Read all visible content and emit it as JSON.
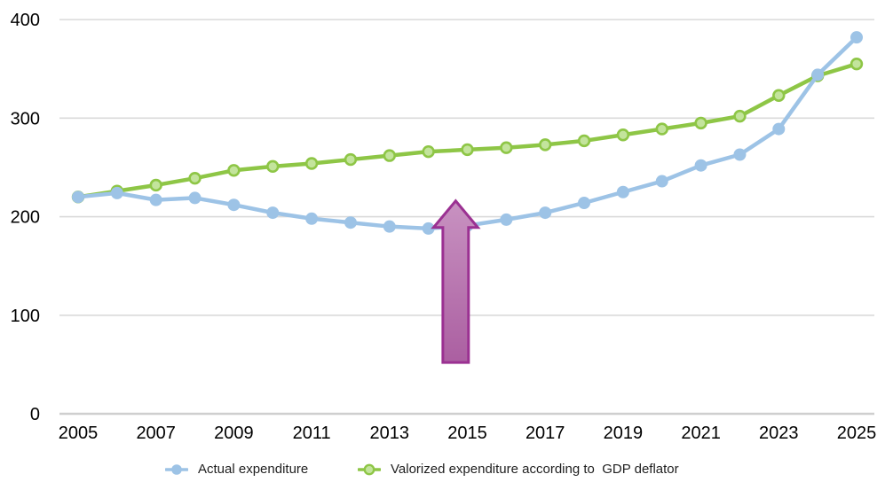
{
  "chart_data": {
    "type": "line",
    "title": "",
    "x": [
      2005,
      2006,
      2007,
      2008,
      2009,
      2010,
      2011,
      2012,
      2013,
      2014,
      2015,
      2016,
      2017,
      2018,
      2019,
      2020,
      2021,
      2022,
      2023,
      2024,
      2025
    ],
    "x_tick_labels": [
      "2005",
      "2007",
      "2009",
      "2011",
      "2013",
      "2015",
      "2017",
      "2019",
      "2021",
      "2023",
      "2025"
    ],
    "yticks": [
      0,
      100,
      200,
      300,
      400
    ],
    "ylim": [
      0,
      400
    ],
    "grid": "horizontal-only",
    "legend_position": "bottom",
    "series": [
      {
        "name": "Actual expenditure",
        "color": "#9dc3e6",
        "marker": "filled-circle",
        "values": [
          220,
          224,
          217,
          219,
          212,
          204,
          198,
          194,
          190,
          188,
          191,
          197,
          204,
          214,
          225,
          236,
          252,
          263,
          289,
          344,
          382
        ]
      },
      {
        "name": "Valorized expenditure according to  GDP deflator",
        "color": "#8ec646",
        "marker": "ring-circle",
        "marker_fill": "#c3e49c",
        "values": [
          220,
          226,
          232,
          239,
          247,
          251,
          254,
          258,
          262,
          266,
          268,
          270,
          273,
          277,
          283,
          289,
          295,
          302,
          323,
          343,
          355
        ]
      }
    ],
    "annotation": {
      "name": "upward-arrow",
      "shape": "arrow-up",
      "x_year": 2014.7,
      "from_value": 52,
      "to_value": 216,
      "head_base_value": 189,
      "head_half_width_years": 0.57,
      "shaft_half_width_years": 0.33,
      "fill_top": "#c892c1",
      "fill_bottom": "#ab5fa1",
      "stroke": "#9b3192"
    },
    "colors": {
      "gridline": "#dadada",
      "zero_line": "#cfcfcf",
      "tick_text": "#000000",
      "legend_text": "#1f1f1f",
      "background": "#ffffff"
    }
  }
}
